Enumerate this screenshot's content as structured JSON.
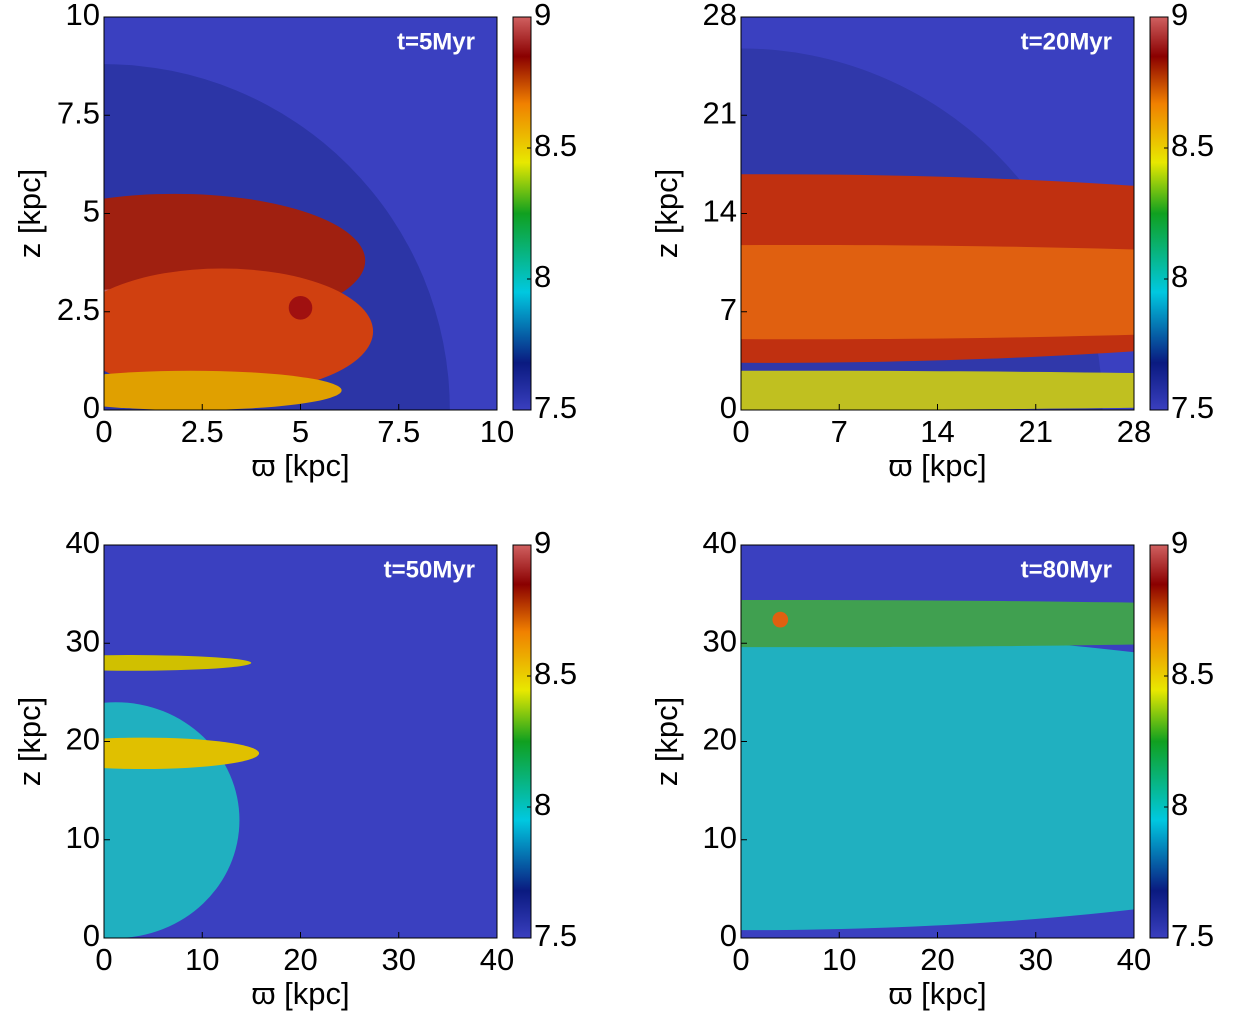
{
  "chart_data": [
    {
      "type": "heatmap",
      "title": "t=5Myr",
      "xlabel": "ϖ [kpc]",
      "ylabel": "z [kpc]",
      "xlim": [
        0,
        10
      ],
      "ylim": [
        0,
        10
      ],
      "xticks": [
        0,
        2.5,
        5,
        7.5,
        10
      ],
      "yticks": [
        0,
        2.5,
        5,
        7.5,
        10
      ],
      "colormap": "jet",
      "clim": [
        7.5,
        9
      ],
      "cticks": [
        7.5,
        8,
        8.5,
        9
      ]
    },
    {
      "type": "heatmap",
      "title": "t=20Myr",
      "xlabel": "ϖ [kpc]",
      "ylabel": "z [kpc]",
      "xlim": [
        0,
        28
      ],
      "ylim": [
        0,
        28
      ],
      "xticks": [
        0,
        7,
        14,
        21,
        28
      ],
      "yticks": [
        0,
        7,
        14,
        21,
        28
      ],
      "colormap": "jet",
      "clim": [
        7.5,
        9
      ],
      "cticks": [
        7.5,
        8,
        8.5,
        9
      ]
    },
    {
      "type": "heatmap",
      "title": "t=50Myr",
      "xlabel": "ϖ [kpc]",
      "ylabel": "z [kpc]",
      "xlim": [
        0,
        40
      ],
      "ylim": [
        0,
        40
      ],
      "xticks": [
        0,
        10,
        20,
        30,
        40
      ],
      "yticks": [
        0,
        10,
        20,
        30,
        40
      ],
      "colormap": "jet",
      "clim": [
        7.5,
        9
      ],
      "cticks": [
        7.5,
        8,
        8.5,
        9
      ]
    },
    {
      "type": "heatmap",
      "title": "t=80Myr",
      "xlabel": "ϖ [kpc]",
      "ylabel": "z [kpc]",
      "xlim": [
        0,
        40
      ],
      "ylim": [
        0,
        40
      ],
      "xticks": [
        0,
        10,
        20,
        30,
        40
      ],
      "yticks": [
        0,
        10,
        20,
        30,
        40
      ],
      "colormap": "jet",
      "clim": [
        7.5,
        9
      ],
      "cticks": [
        7.5,
        8,
        8.5,
        9
      ]
    }
  ]
}
